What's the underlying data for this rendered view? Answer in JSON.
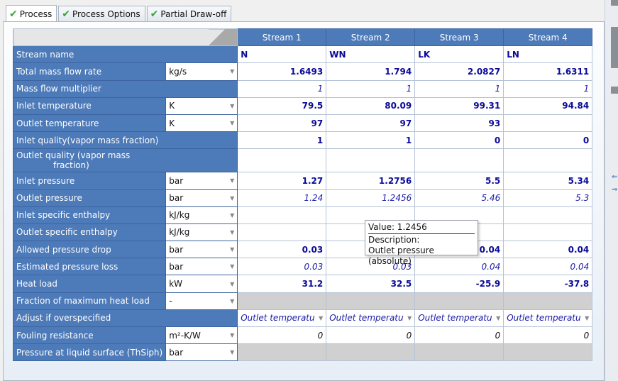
{
  "tabs": [
    {
      "label": "Process",
      "active": true
    },
    {
      "label": "Process Options",
      "active": false
    },
    {
      "label": "Partial Draw-off",
      "active": false
    }
  ],
  "columns": [
    "Stream 1",
    "Stream 2",
    "Stream 3",
    "Stream 4"
  ],
  "rows": [
    {
      "label": "Stream name",
      "unit": null,
      "cells": [
        "N",
        "WN",
        "LK",
        "LN"
      ]
    },
    {
      "label": "Total mass flow rate",
      "unit": "kg/s",
      "cells": [
        "1.6493",
        "1.794",
        "2.0827",
        "1.6311"
      ]
    },
    {
      "label": "Mass flow multiplier",
      "unit": null,
      "cells": [
        "1",
        "1",
        "1",
        "1"
      ]
    },
    {
      "label": "Inlet temperature",
      "unit": "K",
      "cells": [
        "79.5",
        "80.09",
        "99.31",
        "94.84"
      ]
    },
    {
      "label": "Outlet temperature",
      "unit": "K",
      "cells": [
        "97",
        "97",
        "93",
        ""
      ]
    },
    {
      "label": "Inlet quality(vapor mass fraction)",
      "unit": null,
      "cells": [
        "1",
        "1",
        "0",
        "0"
      ]
    },
    {
      "label_line1": "Outlet quality (vapor mass",
      "label_line2": "fraction)",
      "unit": null,
      "cells": [
        "",
        "",
        "",
        ""
      ]
    },
    {
      "label": "Inlet pressure",
      "unit": "bar",
      "cells": [
        "1.27",
        "1.2756",
        "5.5",
        "5.34"
      ]
    },
    {
      "label": "Outlet pressure",
      "unit": "bar",
      "cells": [
        "1.24",
        "1.2456",
        "5.46",
        "5.3"
      ]
    },
    {
      "label": "Inlet specific enthalpy",
      "unit": "kJ/kg",
      "cells": [
        "",
        "",
        "",
        ""
      ]
    },
    {
      "label": "Outlet specific enthalpy",
      "unit": "kJ/kg",
      "cells": [
        "",
        "",
        "",
        ""
      ]
    },
    {
      "label": "Allowed pressure drop",
      "unit": "bar",
      "cells": [
        "0.03",
        "",
        "0.04",
        "0.04"
      ]
    },
    {
      "label": "Estimated pressure loss",
      "unit": "bar",
      "cells": [
        "0.03",
        "0.03",
        "0.04",
        "0.04"
      ]
    },
    {
      "label": "Heat load",
      "unit": "kW",
      "cells": [
        "31.2",
        "32.5",
        "-25.9",
        "-37.8"
      ]
    },
    {
      "label": "Fraction of maximum heat load",
      "unit": "-",
      "cells": [
        "",
        "",
        "",
        ""
      ]
    },
    {
      "label": "Adjust if overspecified",
      "unit": null,
      "cells": [
        "Outlet temperatu",
        "Outlet temperatu",
        "Outlet temperatu",
        "Outlet temperatu"
      ]
    },
    {
      "label": "Fouling resistance",
      "unit": "m²-K/W",
      "cells": [
        "0",
        "0",
        "0",
        "0"
      ]
    },
    {
      "label": "Pressure at liquid surface (ThSiph)",
      "unit": "bar",
      "cells": [
        "",
        "",
        "",
        ""
      ]
    }
  ],
  "tooltip": {
    "value": "Value: 1.2456",
    "desc_label": "Description:",
    "desc": "Outlet pressure (absolute)"
  },
  "colors": {
    "header_blue": "#4d7ab8",
    "value_blue": "#0a0a9a",
    "check_green": "#3aa335"
  }
}
